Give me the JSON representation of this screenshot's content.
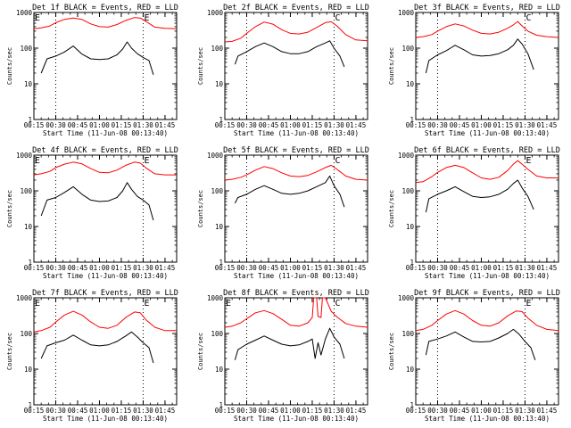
{
  "figure": {
    "ylabel": "Counts/sec",
    "xlabel": "Start Time (11-Jun-08 00:13:40)",
    "xtick_labels": [
      "00:15",
      "00:30",
      "00:45",
      "01:00",
      "01:15",
      "01:30",
      "01:45"
    ],
    "ytick_labels": [
      "1",
      "10",
      "100",
      "1000"
    ],
    "colors": {
      "events": "#000000",
      "lld": "#ff0000"
    }
  },
  "chart_data": [
    {
      "type": "line",
      "title": "Det 1f BLACK = Events, RED = LLD",
      "xlabel": "Start Time (11-Jun-08 00:13:40)",
      "ylabel": "Counts/sec",
      "yscale": "log",
      "ylim": [
        1,
        1000
      ],
      "xlim": [
        "00:15",
        "01:53"
      ],
      "markers": [
        {
          "label": "E",
          "x": "00:15"
        },
        {
          "label": "E",
          "x": "01:30"
        }
      ],
      "vlines": [
        "00:30",
        "01:30"
      ],
      "series": [
        {
          "name": "Events",
          "color": "#000000",
          "x": [
            "00:20",
            "00:24",
            "00:30",
            "00:36",
            "00:42",
            "00:48",
            "00:54",
            "01:00",
            "01:06",
            "01:12",
            "01:16",
            "01:19",
            "01:22",
            "01:26",
            "01:30",
            "01:34",
            "01:37"
          ],
          "y": [
            20,
            50,
            60,
            78,
            115,
            68,
            50,
            48,
            50,
            65,
            95,
            150,
            100,
            70,
            55,
            45,
            18
          ]
        },
        {
          "name": "LLD",
          "color": "#ff0000",
          "x": [
            "00:15",
            "00:20",
            "00:26",
            "00:30",
            "00:36",
            "00:42",
            "00:48",
            "00:54",
            "01:00",
            "01:06",
            "01:12",
            "01:18",
            "01:24",
            "01:28",
            "01:32",
            "01:38",
            "01:45",
            "01:53"
          ],
          "y": [
            350,
            370,
            420,
            520,
            640,
            700,
            640,
            480,
            400,
            390,
            460,
            600,
            720,
            700,
            560,
            390,
            360,
            350
          ]
        }
      ]
    },
    {
      "type": "line",
      "title": "Det 2f BLACK = Events, RED = LLD",
      "xlabel": "Start Time (11-Jun-08 00:13:40)",
      "ylabel": "Counts/sec",
      "yscale": "log",
      "ylim": [
        1,
        1000
      ],
      "xlim": [
        "00:15",
        "01:53"
      ],
      "markers": [
        {
          "label": "C",
          "x": "01:30"
        }
      ],
      "vlines": [
        "00:30",
        "01:30"
      ],
      "series": [
        {
          "name": "Events",
          "color": "#000000",
          "x": [
            "00:22",
            "00:24",
            "00:30",
            "00:36",
            "00:42",
            "00:48",
            "00:54",
            "01:00",
            "01:06",
            "01:12",
            "01:18",
            "01:24",
            "01:27",
            "01:30",
            "01:34",
            "01:37"
          ],
          "y": [
            35,
            60,
            80,
            110,
            140,
            110,
            80,
            70,
            70,
            80,
            110,
            140,
            160,
            100,
            60,
            30
          ]
        },
        {
          "name": "LLD",
          "color": "#ff0000",
          "x": [
            "00:15",
            "00:20",
            "00:26",
            "00:30",
            "00:36",
            "00:42",
            "00:48",
            "00:54",
            "01:00",
            "01:06",
            "01:12",
            "01:18",
            "01:24",
            "01:28",
            "01:32",
            "01:38",
            "01:45",
            "01:53"
          ],
          "y": [
            150,
            155,
            190,
            260,
            400,
            540,
            470,
            330,
            260,
            250,
            280,
            380,
            520,
            550,
            420,
            240,
            170,
            160
          ]
        }
      ]
    },
    {
      "type": "line",
      "title": "Det 3f BLACK = Events, RED = LLD",
      "xlabel": "Start Time (11-Jun-08 00:13:40)",
      "ylabel": "Counts/sec",
      "yscale": "log",
      "ylim": [
        1,
        1000
      ],
      "xlim": [
        "00:15",
        "01:53"
      ],
      "markers": [
        {
          "label": "C",
          "x": "01:30"
        }
      ],
      "vlines": [
        "00:30",
        "01:30"
      ],
      "series": [
        {
          "name": "Events",
          "color": "#000000",
          "x": [
            "00:22",
            "00:24",
            "00:30",
            "00:36",
            "00:42",
            "00:48",
            "00:54",
            "01:00",
            "01:06",
            "01:12",
            "01:18",
            "01:22",
            "01:25",
            "01:28",
            "01:32",
            "01:36"
          ],
          "y": [
            20,
            45,
            65,
            85,
            120,
            90,
            65,
            60,
            62,
            70,
            90,
            120,
            180,
            130,
            70,
            25
          ]
        },
        {
          "name": "LLD",
          "color": "#ff0000",
          "x": [
            "00:15",
            "00:20",
            "00:26",
            "00:30",
            "00:36",
            "00:42",
            "00:48",
            "00:54",
            "01:00",
            "01:06",
            "01:12",
            "01:18",
            "01:22",
            "01:25",
            "01:28",
            "01:32",
            "01:38",
            "01:45",
            "01:53"
          ],
          "y": [
            200,
            210,
            240,
            300,
            400,
            480,
            420,
            320,
            260,
            250,
            280,
            360,
            450,
            560,
            420,
            300,
            230,
            210,
            200
          ]
        }
      ]
    },
    {
      "type": "line",
      "title": "Det 4f BLACK = Events, RED = LLD",
      "xlabel": "Start Time (11-Jun-08 00:13:40)",
      "ylabel": "Counts/sec",
      "yscale": "log",
      "ylim": [
        1,
        1000
      ],
      "xlim": [
        "00:15",
        "01:53"
      ],
      "markers": [
        {
          "label": "E",
          "x": "00:15"
        },
        {
          "label": "E",
          "x": "01:30"
        }
      ],
      "vlines": [
        "00:30",
        "01:30"
      ],
      "series": [
        {
          "name": "Events",
          "color": "#000000",
          "x": [
            "00:20",
            "00:24",
            "00:30",
            "00:36",
            "00:42",
            "00:48",
            "00:54",
            "01:00",
            "01:06",
            "01:12",
            "01:16",
            "01:19",
            "01:22",
            "01:26",
            "01:30",
            "01:34",
            "01:37"
          ],
          "y": [
            20,
            55,
            65,
            90,
            130,
            80,
            55,
            50,
            52,
            65,
            100,
            170,
            110,
            70,
            55,
            40,
            15
          ]
        },
        {
          "name": "LLD",
          "color": "#ff0000",
          "x": [
            "00:15",
            "00:20",
            "00:26",
            "00:30",
            "00:36",
            "00:42",
            "00:48",
            "00:54",
            "01:00",
            "01:06",
            "01:12",
            "01:18",
            "01:24",
            "01:28",
            "01:32",
            "01:38",
            "01:45",
            "01:53"
          ],
          "y": [
            280,
            300,
            350,
            450,
            560,
            640,
            570,
            420,
            330,
            320,
            380,
            520,
            640,
            600,
            440,
            300,
            280,
            280
          ]
        }
      ]
    },
    {
      "type": "line",
      "title": "Det 5f BLACK = Events, RED = LLD",
      "xlabel": "Start Time (11-Jun-08 00:13:40)",
      "ylabel": "Counts/sec",
      "yscale": "log",
      "ylim": [
        1,
        1000
      ],
      "xlim": [
        "00:15",
        "01:53"
      ],
      "markers": [
        {
          "label": "C",
          "x": "01:30"
        }
      ],
      "vlines": [
        "00:30",
        "01:30"
      ],
      "series": [
        {
          "name": "Events",
          "color": "#000000",
          "x": [
            "00:22",
            "00:24",
            "00:30",
            "00:36",
            "00:42",
            "00:48",
            "00:54",
            "01:00",
            "01:06",
            "01:12",
            "01:18",
            "01:24",
            "01:27",
            "01:30",
            "01:34",
            "01:37"
          ],
          "y": [
            45,
            65,
            80,
            110,
            140,
            110,
            85,
            80,
            85,
            100,
            130,
            170,
            260,
            140,
            80,
            35
          ]
        },
        {
          "name": "LLD",
          "color": "#ff0000",
          "x": [
            "00:15",
            "00:20",
            "00:26",
            "00:30",
            "00:36",
            "00:42",
            "00:48",
            "00:54",
            "01:00",
            "01:06",
            "01:12",
            "01:18",
            "01:24",
            "01:28",
            "01:32",
            "01:38",
            "01:45",
            "01:53"
          ],
          "y": [
            200,
            210,
            240,
            280,
            380,
            480,
            420,
            320,
            260,
            250,
            270,
            340,
            450,
            520,
            400,
            260,
            210,
            200
          ]
        }
      ]
    },
    {
      "type": "line",
      "title": "Det 6f BLACK = Events, RED = LLD",
      "xlabel": "Start Time (11-Jun-08 00:13:40)",
      "ylabel": "Counts/sec",
      "yscale": "log",
      "ylim": [
        1,
        1000
      ],
      "xlim": [
        "00:15",
        "01:53"
      ],
      "markers": [
        {
          "label": "E",
          "x": "01:30"
        }
      ],
      "vlines": [
        "00:30",
        "01:30"
      ],
      "series": [
        {
          "name": "Events",
          "color": "#000000",
          "x": [
            "00:22",
            "00:24",
            "00:30",
            "00:36",
            "00:42",
            "00:48",
            "00:54",
            "01:00",
            "01:06",
            "01:12",
            "01:18",
            "01:22",
            "01:25",
            "01:28",
            "01:32",
            "01:36"
          ],
          "y": [
            25,
            60,
            80,
            100,
            130,
            95,
            70,
            65,
            68,
            80,
            110,
            160,
            200,
            120,
            70,
            30
          ]
        },
        {
          "name": "LLD",
          "color": "#ff0000",
          "x": [
            "00:15",
            "00:20",
            "00:26",
            "00:30",
            "00:36",
            "00:42",
            "00:48",
            "00:54",
            "01:00",
            "01:06",
            "01:12",
            "01:18",
            "01:22",
            "01:25",
            "01:28",
            "01:32",
            "01:38",
            "01:45",
            "01:53"
          ],
          "y": [
            170,
            180,
            250,
            330,
            450,
            520,
            450,
            320,
            230,
            210,
            240,
            370,
            560,
            700,
            560,
            400,
            260,
            230,
            230
          ]
        }
      ]
    },
    {
      "type": "line",
      "title": "Det 7f BLACK = Events, RED = LLD",
      "xlabel": "Start Time (11-Jun-08 00:13:40)",
      "ylabel": "Counts/sec",
      "yscale": "log",
      "ylim": [
        1,
        1000
      ],
      "xlim": [
        "00:15",
        "01:53"
      ],
      "markers": [
        {
          "label": "E",
          "x": "00:15"
        },
        {
          "label": "E",
          "x": "01:30"
        }
      ],
      "vlines": [
        "00:30",
        "01:30"
      ],
      "series": [
        {
          "name": "Events",
          "color": "#000000",
          "x": [
            "00:20",
            "00:24",
            "00:30",
            "00:36",
            "00:42",
            "00:48",
            "00:54",
            "01:00",
            "01:06",
            "01:12",
            "01:18",
            "01:22",
            "01:26",
            "01:30",
            "01:34",
            "01:37"
          ],
          "y": [
            20,
            45,
            55,
            65,
            90,
            65,
            48,
            45,
            48,
            60,
            85,
            110,
            80,
            55,
            40,
            15
          ]
        },
        {
          "name": "LLD",
          "color": "#ff0000",
          "x": [
            "00:15",
            "00:20",
            "00:26",
            "00:30",
            "00:36",
            "00:42",
            "00:48",
            "00:54",
            "01:00",
            "01:06",
            "01:12",
            "01:18",
            "01:24",
            "01:28",
            "01:32",
            "01:38",
            "01:45",
            "01:53"
          ],
          "y": [
            110,
            120,
            150,
            210,
            330,
            420,
            330,
            210,
            150,
            140,
            170,
            280,
            400,
            380,
            240,
            150,
            120,
            120
          ]
        }
      ]
    },
    {
      "type": "line",
      "title": "Det 8f BLACK = Events, RED = LLD",
      "xlabel": "Start Time (11-Jun-08 00:13:40)",
      "ylabel": "Counts/sec",
      "yscale": "log",
      "ylim": [
        1,
        1000
      ],
      "xlim": [
        "00:15",
        "01:53"
      ],
      "markers": [
        {
          "label": "E",
          "x": "00:15"
        },
        {
          "label": "C",
          "x": "01:30"
        }
      ],
      "vlines": [
        "00:30",
        "01:30"
      ],
      "series": [
        {
          "name": "Events",
          "color": "#000000",
          "x": [
            "00:22",
            "00:24",
            "00:30",
            "00:36",
            "00:42",
            "00:48",
            "00:54",
            "01:00",
            "01:06",
            "01:12",
            "01:15",
            "01:17",
            "01:19",
            "01:21",
            "01:24",
            "01:27",
            "01:30",
            "01:34",
            "01:37"
          ],
          "y": [
            18,
            35,
            50,
            65,
            85,
            65,
            50,
            45,
            48,
            60,
            70,
            20,
            55,
            25,
            70,
            140,
            80,
            50,
            20
          ]
        },
        {
          "name": "LLD",
          "color": "#ff0000",
          "x": [
            "00:15",
            "00:20",
            "00:26",
            "00:30",
            "00:36",
            "00:42",
            "00:48",
            "00:54",
            "01:00",
            "01:06",
            "01:12",
            "01:15",
            "01:16",
            "01:18",
            "01:19",
            "01:21",
            "01:22",
            "01:24",
            "01:28",
            "01:32",
            "01:38",
            "01:45",
            "01:53"
          ],
          "y": [
            150,
            160,
            200,
            260,
            380,
            440,
            360,
            250,
            170,
            160,
            200,
            280,
            1000,
            1000,
            300,
            280,
            1000,
            1000,
            420,
            290,
            190,
            160,
            150
          ]
        }
      ]
    },
    {
      "type": "line",
      "title": "Det 9f BLACK = Events, RED = LLD",
      "xlabel": "Start Time (11-Jun-08 00:13:40)",
      "ylabel": "Counts/sec",
      "yscale": "log",
      "ylim": [
        1,
        1000
      ],
      "xlim": [
        "00:15",
        "01:53"
      ],
      "markers": [
        {
          "label": "E",
          "x": "01:30"
        }
      ],
      "vlines": [
        "00:30",
        "01:30"
      ],
      "series": [
        {
          "name": "Events",
          "color": "#000000",
          "x": [
            "00:22",
            "00:24",
            "00:30",
            "00:36",
            "00:42",
            "00:48",
            "00:54",
            "01:00",
            "01:06",
            "01:12",
            "01:18",
            "01:22",
            "01:26",
            "01:30",
            "01:34",
            "01:37"
          ],
          "y": [
            25,
            60,
            70,
            85,
            110,
            80,
            60,
            58,
            60,
            75,
            100,
            130,
            95,
            60,
            40,
            18
          ]
        },
        {
          "name": "LLD",
          "color": "#ff0000",
          "x": [
            "00:15",
            "00:20",
            "00:26",
            "00:30",
            "00:36",
            "00:42",
            "00:48",
            "00:54",
            "01:00",
            "01:06",
            "01:12",
            "01:18",
            "01:24",
            "01:28",
            "01:32",
            "01:38",
            "01:45",
            "01:53"
          ],
          "y": [
            120,
            130,
            170,
            230,
            350,
            440,
            350,
            230,
            170,
            160,
            200,
            310,
            430,
            410,
            270,
            170,
            130,
            120
          ]
        }
      ]
    }
  ]
}
